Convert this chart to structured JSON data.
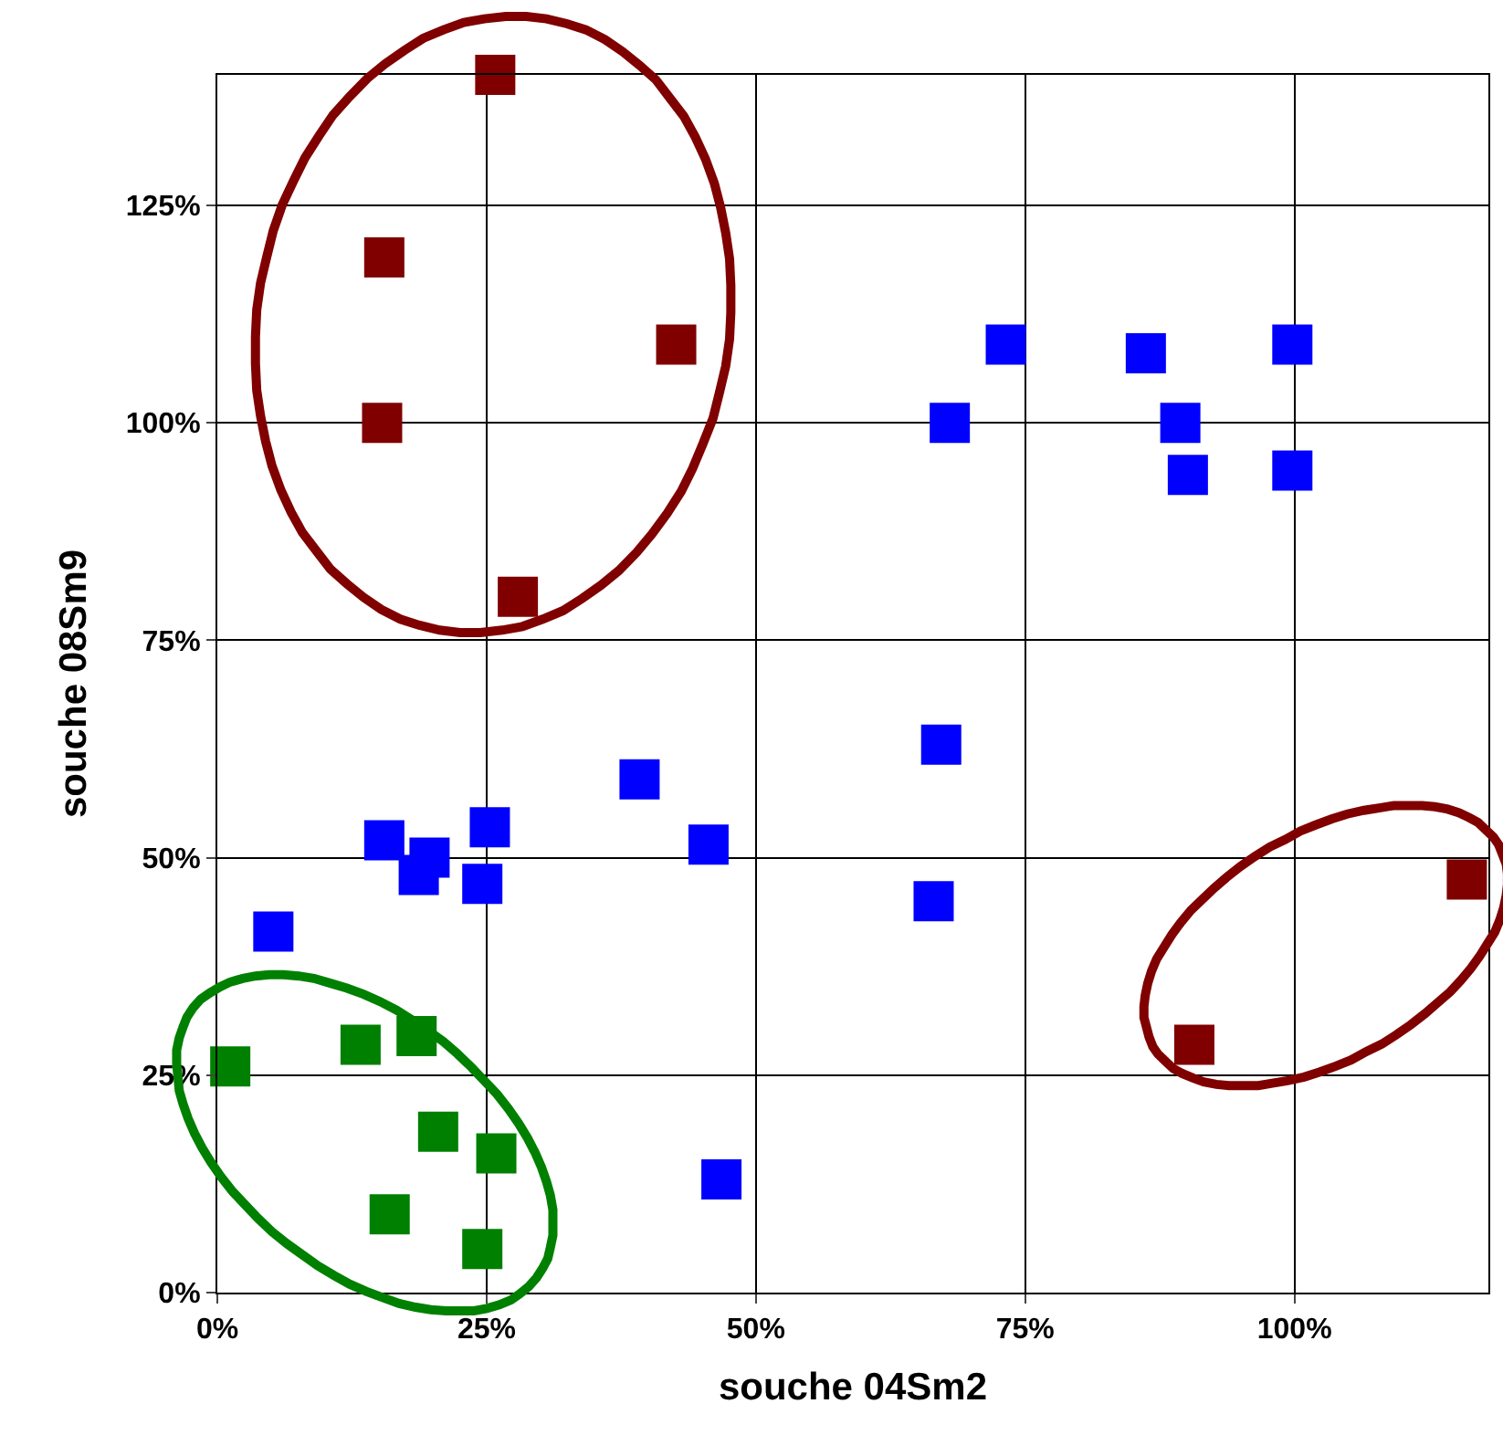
{
  "chart_data": {
    "type": "scatter",
    "xlabel": "souche 04Sm2",
    "ylabel": "souche 08Sm9",
    "xlim": [
      0,
      118
    ],
    "ylim": [
      0,
      140
    ],
    "xticks": [
      {
        "value": 0,
        "label": "0%"
      },
      {
        "value": 25,
        "label": "25%"
      },
      {
        "value": 50,
        "label": "50%"
      },
      {
        "value": 75,
        "label": "75%"
      },
      {
        "value": 100,
        "label": "100%"
      }
    ],
    "yticks": [
      {
        "value": 0,
        "label": "0%"
      },
      {
        "value": 25,
        "label": "25%"
      },
      {
        "value": 50,
        "label": "50%"
      },
      {
        "value": 75,
        "label": "75%"
      },
      {
        "value": 100,
        "label": "100%"
      },
      {
        "value": 125,
        "label": "125%"
      }
    ],
    "grid": true,
    "marker": "square",
    "series": [
      {
        "color": "#800000",
        "x": [
          25.8,
          15.5,
          15.3,
          42.6,
          27.9,
          116,
          90.7
        ],
        "values": [
          140,
          119,
          100,
          109,
          80,
          47.5,
          28.5
        ]
      },
      {
        "color": "#0000ff",
        "x": [
          73.2,
          86.2,
          89.4,
          90.1,
          99.8,
          99.8,
          68,
          67.2,
          66.5,
          39.2,
          45.6,
          25.3,
          24.6,
          19.7,
          15.5,
          18.7,
          5.2,
          46.8
        ],
        "values": [
          109,
          108,
          100,
          94,
          109,
          94.5,
          100,
          63,
          45,
          59,
          51.5,
          53.5,
          47,
          50,
          52,
          48,
          41.5,
          13
        ]
      },
      {
        "color": "#008000",
        "x": [
          1.2,
          13.3,
          18.5,
          20.5,
          25.9,
          16,
          24.6
        ],
        "values": [
          26,
          28.5,
          29.5,
          18.5,
          16,
          9,
          5
        ]
      }
    ]
  }
}
